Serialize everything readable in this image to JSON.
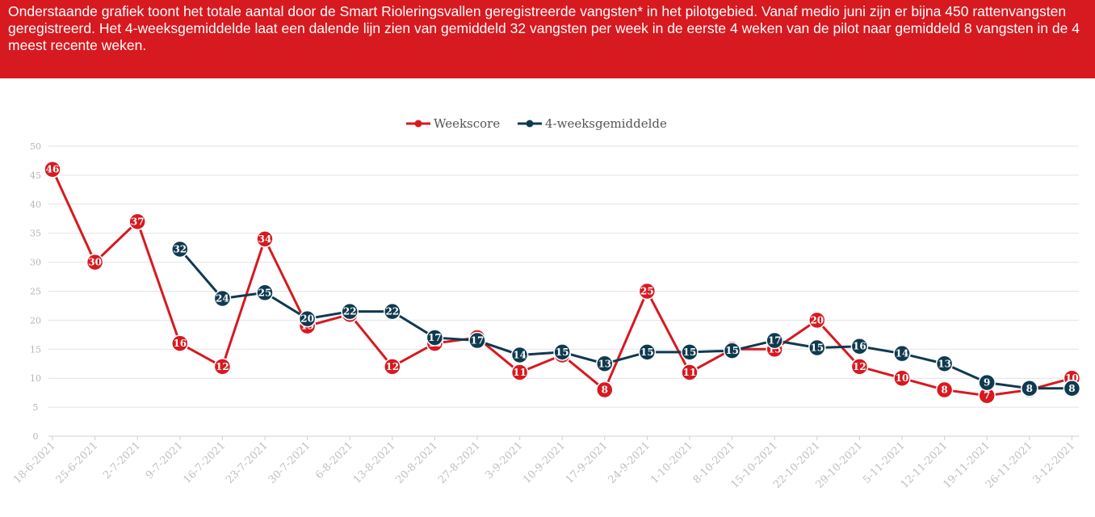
{
  "description": "Onderstaande grafiek toont het totale aantal door de Smart Rioleringsvallen geregistreerde vangsten* in het pilotgebied. Vanaf medio juni zijn er bijna 450 rattenvangsten geregistreerd. Het 4-weeksgemiddelde laat een dalende lijn zien van gemiddeld 32 vangsten per week in de eerste 4 weken van de pilot naar gemiddeld 8 vangsten in de 4 meest recente weken.",
  "colors": {
    "banner": "#d71920",
    "weekscore": "#d71920",
    "average": "#0f3a4f"
  },
  "chart_data": {
    "type": "line",
    "categories": [
      "18-6-2021",
      "25-6-2021",
      "2-7-2021",
      "9-7-2021",
      "16-7-2021",
      "23-7-2021",
      "30-7-2021",
      "6-8-2021",
      "13-8-2021",
      "20-8-2021",
      "27-8-2021",
      "3-9-2021",
      "10-9-2021",
      "17-9-2021",
      "24-9-2021",
      "1-10-2021",
      "8-10-2021",
      "15-10-2021",
      "22-10-2021",
      "29-10-2021",
      "5-11-2021",
      "12-11-2021",
      "19-11-2021",
      "26-11-2021",
      "3-12-2021"
    ],
    "series": [
      {
        "name": "Weekscore",
        "color": "#d71920",
        "values": [
          46,
          30,
          37,
          16,
          12,
          34,
          19,
          21,
          12,
          16,
          17,
          11,
          14,
          8,
          25,
          11,
          15,
          15,
          20,
          12,
          10,
          8,
          7,
          8,
          10
        ]
      },
      {
        "name": "4-weeksgemiddelde",
        "color": "#0f3a4f",
        "values": [
          null,
          null,
          null,
          32,
          24,
          25,
          20,
          22,
          22,
          17,
          17,
          14,
          15,
          13,
          15,
          15,
          15,
          17,
          15,
          16,
          14,
          13,
          9,
          8,
          8
        ],
        "positions": [
          null,
          null,
          null,
          32.25,
          23.75,
          24.75,
          20.25,
          21.5,
          21.5,
          17,
          16.5,
          14,
          14.5,
          12.5,
          14.5,
          14.5,
          14.75,
          16.5,
          15.25,
          15.5,
          14.25,
          12.5,
          9.25,
          8.25,
          8.25
        ]
      }
    ],
    "ylim": [
      0,
      50
    ],
    "yticks": [
      0,
      5,
      10,
      15,
      20,
      25,
      30,
      35,
      40,
      45,
      50
    ],
    "legend_position": "top-center",
    "grid": true
  }
}
